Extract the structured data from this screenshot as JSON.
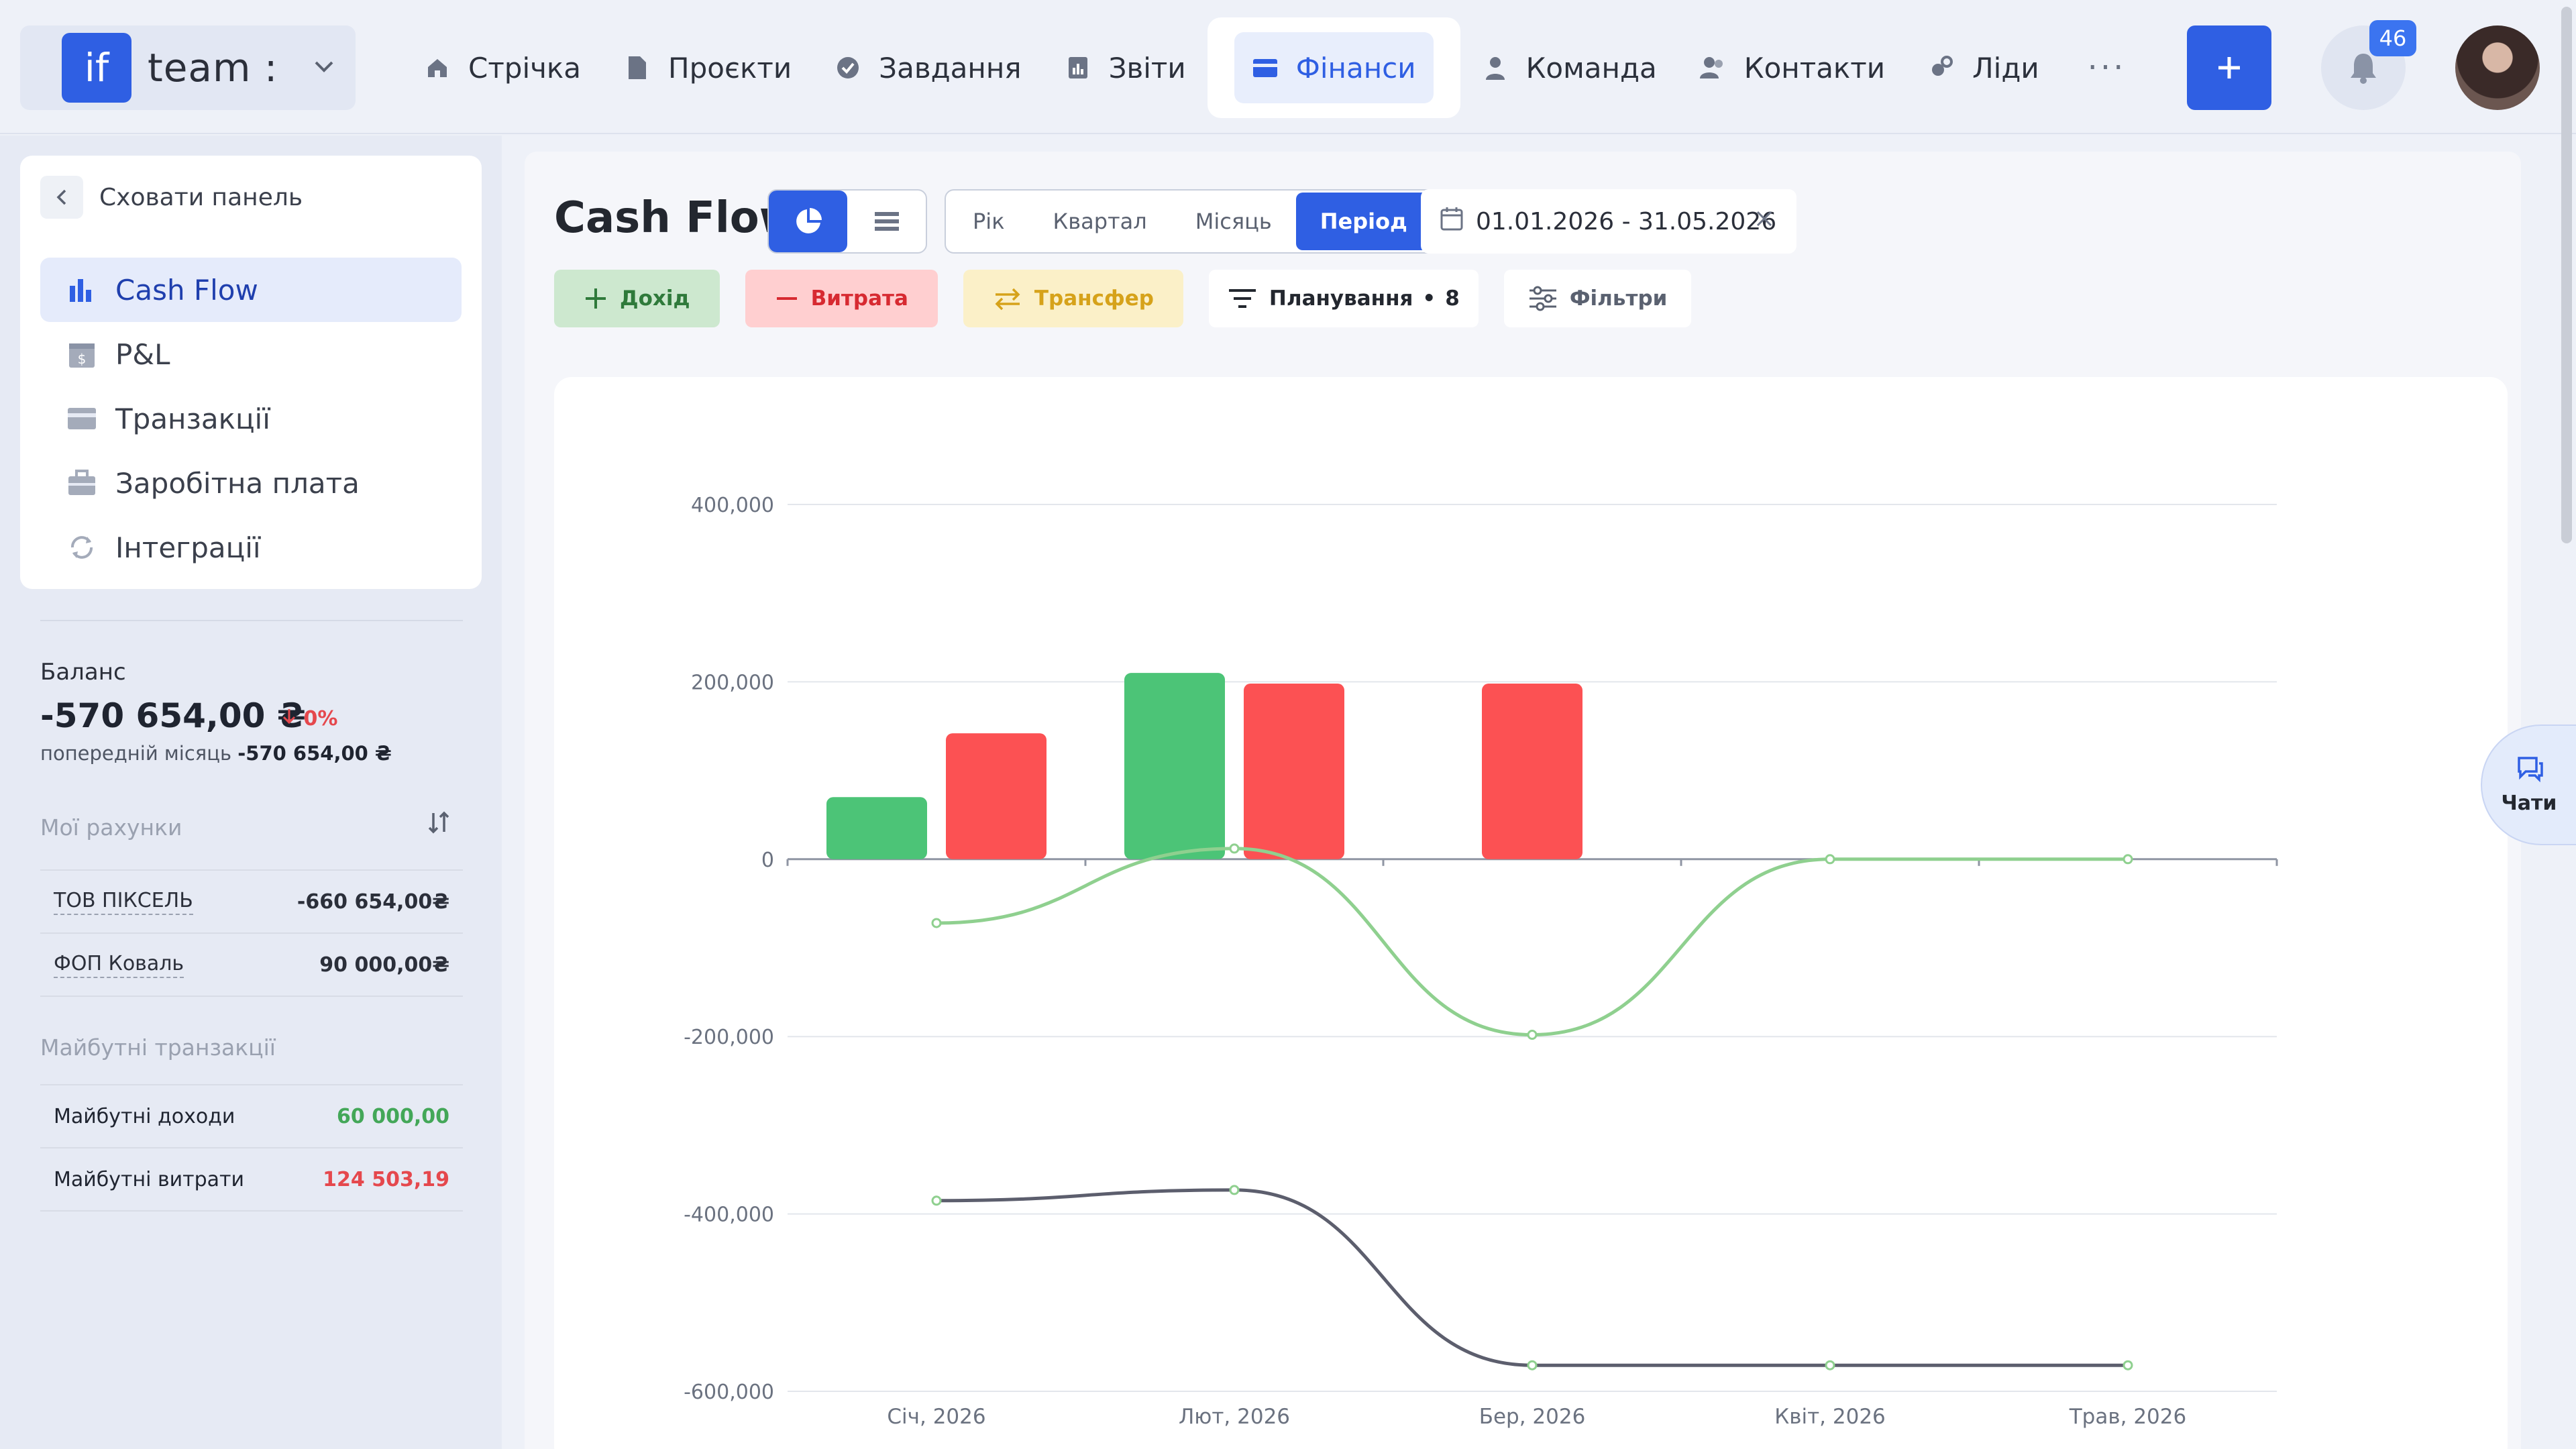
{
  "brand": {
    "logo": "if",
    "name": "team :"
  },
  "nav": [
    {
      "label": "Стрічка",
      "icon": "home-icon"
    },
    {
      "label": "Проєкти",
      "icon": "document-icon"
    },
    {
      "label": "Завдання",
      "icon": "check-circle-icon"
    },
    {
      "label": "Звіти",
      "icon": "report-icon"
    },
    {
      "label": "Фінанси",
      "icon": "wallet-icon",
      "active": true
    },
    {
      "label": "Команда",
      "icon": "person-icon"
    },
    {
      "label": "Контакти",
      "icon": "contacts-icon"
    },
    {
      "label": "Ліди",
      "icon": "leads-icon"
    }
  ],
  "nav_more": "···",
  "notifications": {
    "count": "46"
  },
  "sidebar": {
    "hide_label": "Сховати панель",
    "items": [
      {
        "label": "Cash Flow",
        "icon": "bar-chart-icon",
        "active": true
      },
      {
        "label": "P&L",
        "icon": "calendar-dollar-icon"
      },
      {
        "label": "Транзакції",
        "icon": "card-icon"
      },
      {
        "label": "Заробітна плата",
        "icon": "briefcase-icon"
      },
      {
        "label": "Інтеграції",
        "icon": "sync-icon"
      }
    ],
    "balance": {
      "label": "Баланс",
      "value": "-570 654,00 ₴",
      "delta": "0%",
      "prev_label": "попередній місяць",
      "prev_value": "-570 654,00 ₴"
    },
    "accounts_title": "Мої рахунки",
    "accounts": [
      {
        "name": "ТОВ ПІКСЕЛЬ",
        "value": "-660 654,00₴"
      },
      {
        "name": "ФОП Коваль",
        "value": "90 000,00₴"
      }
    ],
    "future_title": "Майбутні транзакції",
    "future": [
      {
        "name": "Майбутні доходи",
        "value": "60 000,00",
        "color": "#43a758"
      },
      {
        "name": "Майбутні витрати",
        "value": "124 503,19",
        "color": "#e5484d"
      }
    ]
  },
  "main": {
    "title": "Cash Flow",
    "period_tabs": [
      "Рік",
      "Квартал",
      "Місяць",
      "Період"
    ],
    "active_period": "Період",
    "date_range": "01.01.2026 - 31.05.2026",
    "actions": {
      "income": "Дохід",
      "expense": "Витрата",
      "transfer": "Трансфер",
      "planning": "Планування",
      "planning_count": "8",
      "filters": "Фільтри"
    }
  },
  "chats_label": "Чати",
  "colors": {
    "accent": "#2f5fe3",
    "income": "#4cc477",
    "expense": "#fc5153",
    "balance_line": "#8fd08f",
    "cumulative_line": "#5c5e6d"
  },
  "chart_data": {
    "type": "bar",
    "categories": [
      "Січ, 2026",
      "Лют, 2026",
      "Бер, 2026",
      "Квіт, 2026",
      "Трав, 2026"
    ],
    "ylim": [
      -600000,
      400000
    ],
    "yticks": [
      400000,
      200000,
      0,
      -200000,
      -400000,
      -600000
    ],
    "ytick_labels": [
      "400,000",
      "200,000",
      "0",
      "-200,000",
      "-400,000",
      "-600,000"
    ],
    "grid": true,
    "series": [
      {
        "kind": "bar",
        "values": [
          70000,
          210000,
          0,
          0,
          0
        ],
        "color": "#4cc477"
      },
      {
        "kind": "bar",
        "values": [
          142000,
          198000,
          198000,
          0,
          0
        ],
        "color": "#fc5153"
      },
      {
        "kind": "line",
        "values": [
          -72000,
          12000,
          -198000,
          0,
          0
        ],
        "color": "#8fd08f"
      },
      {
        "kind": "line",
        "values": [
          -385000,
          -373000,
          -570654,
          -570654,
          -570654
        ],
        "color": "#5c5e6d"
      }
    ]
  }
}
